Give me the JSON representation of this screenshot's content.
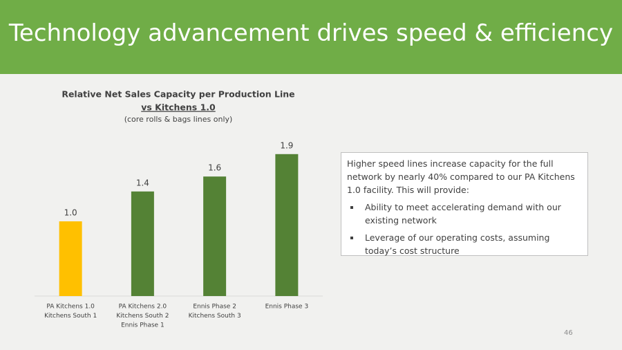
{
  "slide": {
    "title": "Technology advancement drives speed & efficiency",
    "textbox": {
      "intro": "Higher speed lines increase capacity for the full network by nearly 40% compared to our PA Kitchens 1.0 facility. This will provide:",
      "bullets": [
        "Ability to meet accelerating demand with our existing network",
        "Leverage of our operating costs, assuming today’s cost structure"
      ]
    },
    "page_number": "46"
  },
  "chart_data": {
    "type": "bar",
    "title": "Relative Net Sales Capacity per Production Line",
    "subtitle": "vs Kitchens 1.0",
    "note": "(core rolls & bags lines only)",
    "categories": [
      [
        "PA Kitchens 1.0",
        "Kitchens South 1"
      ],
      [
        "PA Kitchens 2.0",
        "Kitchens South 2",
        "Ennis Phase 1"
      ],
      [
        "Ennis Phase 2",
        "Kitchens South 3"
      ],
      [
        "Ennis Phase 3"
      ]
    ],
    "values": [
      1.0,
      1.4,
      1.6,
      1.9
    ],
    "value_labels": [
      "1.0",
      "1.4",
      "1.6",
      "1.9"
    ],
    "colors": [
      "#ffc000",
      "#548235",
      "#548235",
      "#548235"
    ],
    "ylim": [
      0,
      2.5
    ]
  }
}
